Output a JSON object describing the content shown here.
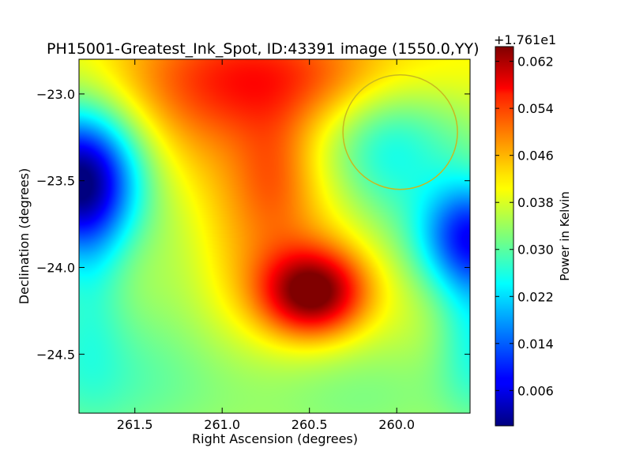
{
  "chart_data": {
    "type": "heatmap",
    "title": "PH15001-Greatest_Ink_Spot, ID:43391 image (1550.0,YY)",
    "xlabel": "Right Ascension (degrees)",
    "ylabel": "Declination (degrees)",
    "x_axis_inverted": true,
    "xlim": [
      261.82,
      259.58
    ],
    "ylim": [
      -24.84,
      -22.8
    ],
    "xticks": [
      261.5,
      261.0,
      260.5,
      260.0
    ],
    "xtick_labels": [
      "261.5",
      "261.0",
      "260.5",
      "260.0"
    ],
    "yticks": [
      -23.0,
      -23.5,
      -24.0,
      -24.5
    ],
    "ytick_labels": [
      "−23.0",
      "−23.5",
      "−24.0",
      "−24.5"
    ],
    "colorbar": {
      "label": "Power in Kelvin",
      "offset_text": "+1.761e1",
      "colormap": "jet",
      "range": [
        0.0,
        0.0645
      ],
      "ticks": [
        0.006,
        0.014,
        0.022,
        0.03,
        0.038,
        0.046,
        0.054,
        0.062
      ],
      "tick_labels": [
        "0.006",
        "0.014",
        "0.022",
        "0.030",
        "0.038",
        "0.046",
        "0.054",
        "0.062"
      ]
    },
    "features": [
      {
        "ra": 260.43,
        "dec": -24.32,
        "value": 0.064
      },
      {
        "ra": 260.6,
        "dec": -22.85,
        "value": 0.056
      },
      {
        "ra": 260.75,
        "dec": -23.45,
        "value": 0.052
      },
      {
        "ra": 261.8,
        "dec": -23.5,
        "value": 0.002
      },
      {
        "ra": 259.6,
        "dec": -23.8,
        "value": 0.012
      },
      {
        "ra": 259.98,
        "dec": -23.22,
        "value": 0.031
      }
    ],
    "beam_circle": {
      "ra": 259.98,
      "dec": -23.22,
      "radius_deg": 0.33,
      "color": "#c8b820"
    }
  }
}
